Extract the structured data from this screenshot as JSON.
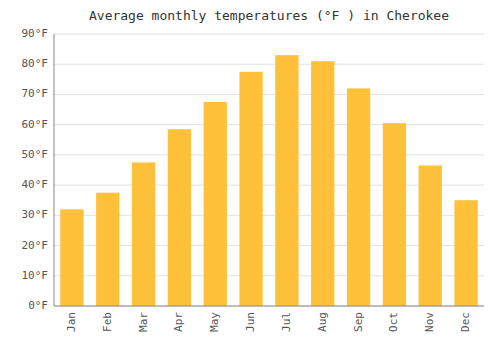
{
  "chart_data": {
    "type": "bar",
    "title": "Average monthly temperatures (°F ) in Cherokee",
    "categories": [
      "Jan",
      "Feb",
      "Mar",
      "Apr",
      "May",
      "Jun",
      "Jul",
      "Aug",
      "Sep",
      "Oct",
      "Nov",
      "Dec"
    ],
    "values": [
      32,
      37.5,
      47.5,
      58.5,
      67.5,
      77.5,
      83,
      81,
      72,
      60.5,
      46.5,
      35
    ],
    "color": "#FFC03A",
    "ylim": [
      0,
      90
    ],
    "yticks": [
      {
        "value": 0,
        "label": "0°F"
      },
      {
        "value": 10,
        "label": "10°F"
      },
      {
        "value": 20,
        "label": "20°F"
      },
      {
        "value": 30,
        "label": "30°F"
      },
      {
        "value": 40,
        "label": "40°F"
      },
      {
        "value": 50,
        "label": "50°F"
      },
      {
        "value": 60,
        "label": "60°F"
      },
      {
        "value": 70,
        "label": "70°F"
      },
      {
        "value": 80,
        "label": "80°F"
      },
      {
        "value": 90,
        "label": "90°F"
      }
    ],
    "grid": true
  }
}
